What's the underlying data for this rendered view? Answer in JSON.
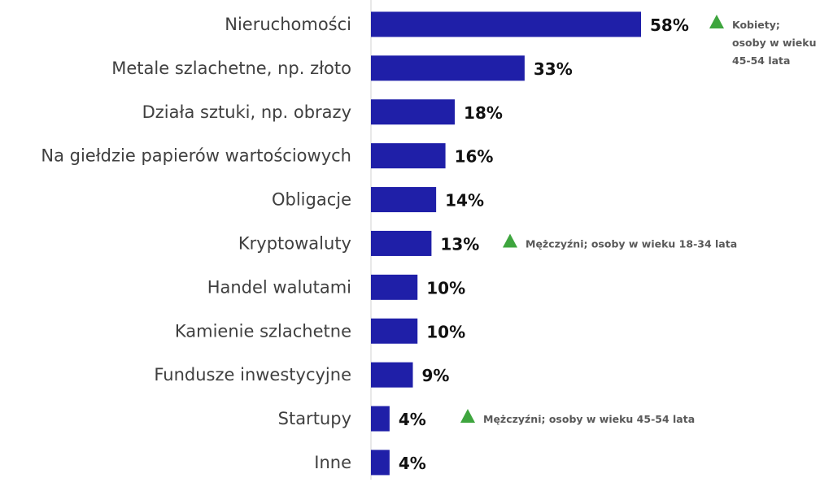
{
  "chart_data": {
    "type": "bar",
    "orientation": "horizontal",
    "categories": [
      "Nieruchomości",
      "Metale szlachetne, np. złoto",
      "Działa sztuki, np. obrazy",
      "Na giełdzie papierów wartościowych",
      "Obligacje",
      "Kryptowaluty",
      "Handel walutami",
      "Kamienie szlachetne",
      "Fundusze inwestycyjne",
      "Startupy",
      "Inne"
    ],
    "values": [
      58,
      33,
      18,
      16,
      14,
      13,
      10,
      10,
      9,
      4,
      4
    ],
    "value_labels": [
      "58%",
      "33%",
      "18%",
      "16%",
      "14%",
      "13%",
      "10%",
      "10%",
      "9%",
      "4%",
      "4%"
    ],
    "annotations": [
      {
        "category_index": 0,
        "lines": [
          "Kobiety;",
          "osoby w wieku",
          "45-54 lata"
        ]
      },
      {
        "category_index": 5,
        "lines": [
          "Mężczyźni; osoby w wieku 18-34 lata"
        ]
      },
      {
        "category_index": 9,
        "lines": [
          "Mężczyźni; osoby w wieku 45-54 lata"
        ]
      }
    ],
    "xlim": [
      0,
      58
    ],
    "grid": false,
    "bar_color": "#1F1FA8",
    "marker_color": "#3EA53E",
    "marker": "up-triangle"
  }
}
